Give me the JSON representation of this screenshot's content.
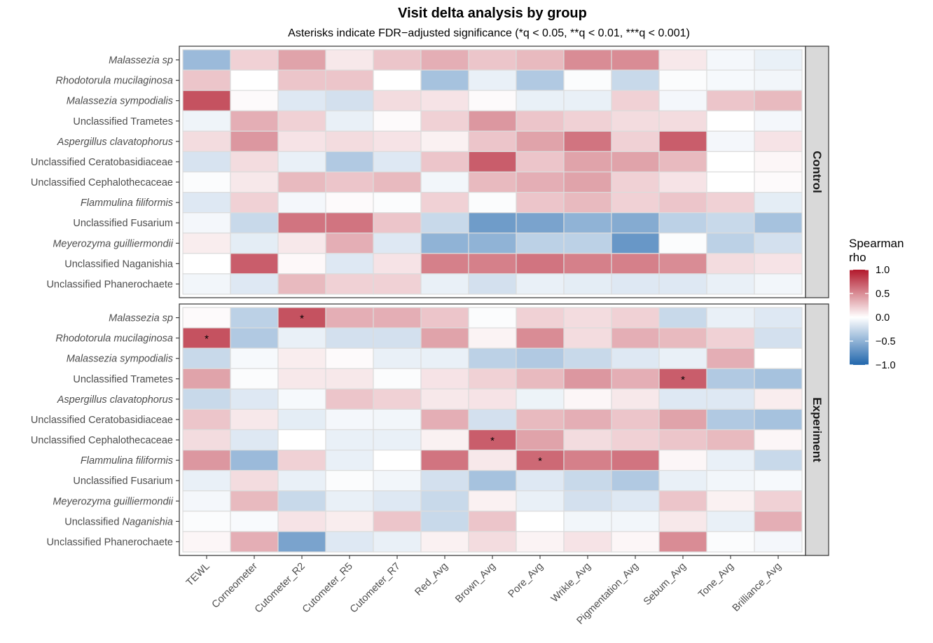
{
  "chart_data": {
    "type": "heatmap",
    "title": "Visit delta analysis by group",
    "subtitle": "Asterisks indicate FDR−adjusted significance (*q < 0.05, **q < 0.01, ***q < 0.001)",
    "x_categories": [
      "TEWL",
      "Corneometer",
      "Cutometer_R2",
      "Cutometer_R5",
      "Cutometer_R7",
      "Red_Avg",
      "Brown_Avg",
      "Pore_Avg",
      "Wrikle_Avg",
      "Pigmentation_Avg",
      "Sebum_Avg",
      "Tone_Avg",
      "Brilliance_Avg"
    ],
    "y_categories": [
      {
        "label": "Malassezia  sp",
        "italic": true
      },
      {
        "label": "Rhodotorula  mucilaginosa",
        "italic": true
      },
      {
        "label": "Malassezia  sympodialis",
        "italic": true
      },
      {
        "label": "Unclassified Trametes",
        "italic": false
      },
      {
        "label": "Aspergillus  clavatophorus",
        "italic": true
      },
      {
        "label": "Unclassified Ceratobasidiaceae",
        "italic": false
      },
      {
        "label": "Unclassified Cephalothecaceae",
        "italic": false
      },
      {
        "label": "Flammulina  filiformis",
        "italic": true
      },
      {
        "label": "Unclassified Fusarium",
        "italic": false
      },
      {
        "label": "Meyerozyma  guilliermondii",
        "italic": true
      },
      {
        "label": "Unclassified Naganishia",
        "italic": false
      },
      {
        "label": "Unclassified Phanerochaete",
        "italic": false
      }
    ],
    "y_categories_experiment": [
      {
        "label": "Malassezia  sp",
        "italic": true
      },
      {
        "label": "Rhodotorula  mucilaginosa",
        "italic": true
      },
      {
        "label": "Malassezia  sympodialis",
        "italic": true
      },
      {
        "label": "Unclassified Trametes",
        "italic": false
      },
      {
        "label": "Aspergillus  clavatophorus",
        "italic": true
      },
      {
        "label": "Unclassified Ceratobasidiaceae",
        "italic": false
      },
      {
        "label": "Unclassified Cephalothecaceae",
        "italic": false
      },
      {
        "label": "Flammulina  filiformis",
        "italic": true
      },
      {
        "label": "Unclassified Fusarium",
        "italic": false
      },
      {
        "label": "Meyerozyma  guilliermondii",
        "italic": true
      },
      {
        "label": "Unclassified ",
        "label_italic": "Naganishia",
        "italic": false
      },
      {
        "label": "Unclassified Phanerochaete",
        "italic": false
      }
    ],
    "legend": {
      "title_lines": [
        "Spearman",
        "rho"
      ],
      "ticks": [
        1.0,
        0.5,
        0.0,
        -0.5,
        -1.0
      ],
      "tick_labels": [
        "1.0",
        "0.5",
        "0.0",
        "−0.5",
        "−1.0"
      ],
      "range": [
        -1,
        1
      ],
      "colors": {
        "low": "#2166ac",
        "mid": "#ffffff",
        "high": "#b2182b"
      },
      "placement": "right"
    },
    "panels": [
      {
        "name": "Control",
        "values": [
          [
            -0.45,
            0.2,
            0.4,
            0.1,
            0.25,
            0.35,
            0.25,
            0.3,
            0.5,
            0.5,
            0.1,
            -0.05,
            -0.1
          ],
          [
            0.25,
            0.0,
            0.25,
            0.25,
            0.0,
            -0.4,
            -0.1,
            -0.35,
            -0.02,
            -0.25,
            -0.02,
            -0.04,
            -0.06
          ],
          [
            0.75,
            0.02,
            -0.15,
            -0.2,
            0.15,
            0.12,
            0.02,
            -0.1,
            -0.1,
            0.2,
            -0.05,
            0.25,
            0.3
          ],
          [
            -0.07,
            0.35,
            0.2,
            -0.1,
            0.02,
            0.2,
            0.45,
            0.25,
            0.2,
            0.15,
            0.15,
            0.0,
            -0.05
          ],
          [
            0.15,
            0.45,
            0.12,
            0.15,
            0.12,
            0.06,
            0.25,
            0.4,
            0.6,
            0.2,
            0.7,
            -0.05,
            0.12
          ],
          [
            -0.18,
            0.15,
            -0.1,
            -0.35,
            -0.15,
            0.25,
            0.7,
            0.25,
            0.4,
            0.4,
            0.3,
            0.0,
            0.04
          ],
          [
            -0.02,
            0.1,
            0.3,
            0.25,
            0.3,
            -0.06,
            0.3,
            0.35,
            0.4,
            0.2,
            0.12,
            0.0,
            0.02
          ],
          [
            -0.15,
            0.2,
            -0.05,
            0.02,
            -0.02,
            0.2,
            -0.02,
            0.25,
            0.3,
            0.2,
            0.25,
            0.2,
            -0.12
          ],
          [
            -0.05,
            -0.25,
            0.6,
            0.6,
            0.25,
            -0.25,
            -0.65,
            -0.6,
            -0.5,
            -0.55,
            -0.3,
            -0.25,
            -0.4
          ],
          [
            0.08,
            -0.12,
            0.1,
            0.35,
            -0.15,
            -0.5,
            -0.5,
            -0.3,
            -0.3,
            -0.68,
            -0.02,
            -0.3,
            -0.2
          ],
          [
            0.0,
            0.7,
            0.03,
            -0.15,
            0.12,
            0.55,
            0.55,
            0.6,
            0.55,
            0.55,
            0.5,
            0.15,
            0.12
          ],
          [
            -0.06,
            -0.15,
            0.3,
            0.2,
            0.2,
            -0.1,
            -0.2,
            -0.1,
            -0.12,
            -0.15,
            -0.15,
            -0.1,
            -0.06
          ]
        ],
        "stars": []
      },
      {
        "name": "Experiment",
        "values": [
          [
            0.02,
            -0.3,
            0.75,
            0.35,
            0.35,
            0.25,
            -0.02,
            0.2,
            0.15,
            0.2,
            -0.25,
            -0.1,
            -0.15
          ],
          [
            0.75,
            -0.35,
            -0.1,
            -0.2,
            -0.2,
            0.4,
            0.05,
            0.5,
            0.15,
            0.35,
            0.3,
            0.2,
            -0.2
          ],
          [
            -0.25,
            -0.04,
            0.08,
            0.02,
            -0.1,
            -0.1,
            -0.3,
            -0.35,
            -0.25,
            -0.15,
            -0.1,
            0.35,
            0.0
          ],
          [
            0.4,
            -0.02,
            0.1,
            0.1,
            -0.02,
            0.12,
            0.2,
            0.3,
            0.45,
            0.35,
            0.7,
            -0.35,
            -0.4
          ],
          [
            -0.25,
            -0.15,
            -0.04,
            0.25,
            0.2,
            0.1,
            0.12,
            -0.08,
            0.04,
            0.1,
            -0.15,
            -0.15,
            0.08
          ],
          [
            0.25,
            0.1,
            -0.12,
            -0.05,
            -0.06,
            0.35,
            -0.2,
            0.3,
            0.35,
            0.25,
            0.4,
            -0.35,
            -0.4
          ],
          [
            0.15,
            -0.15,
            0.0,
            -0.1,
            -0.1,
            0.06,
            0.7,
            0.4,
            0.15,
            0.2,
            0.25,
            0.3,
            0.04
          ],
          [
            0.45,
            -0.45,
            0.2,
            -0.1,
            0.0,
            0.6,
            0.1,
            0.65,
            0.55,
            0.6,
            0.04,
            -0.1,
            -0.25
          ],
          [
            -0.1,
            0.15,
            -0.1,
            -0.02,
            -0.06,
            -0.2,
            -0.4,
            -0.15,
            -0.25,
            -0.35,
            -0.1,
            -0.06,
            -0.04
          ],
          [
            -0.05,
            0.3,
            -0.25,
            -0.1,
            -0.15,
            -0.25,
            0.06,
            -0.1,
            -0.2,
            -0.15,
            0.25,
            0.06,
            0.2
          ],
          [
            -0.02,
            -0.03,
            0.12,
            0.08,
            0.25,
            -0.25,
            0.25,
            0.0,
            -0.06,
            -0.06,
            0.1,
            -0.1,
            0.35
          ],
          [
            0.04,
            0.35,
            -0.6,
            -0.15,
            -0.1,
            0.06,
            0.15,
            0.05,
            0.12,
            0.04,
            0.5,
            -0.02,
            -0.05
          ]
        ],
        "stars": [
          {
            "row": 0,
            "col": 2,
            "label": "*"
          },
          {
            "row": 1,
            "col": 0,
            "label": "*"
          },
          {
            "row": 3,
            "col": 10,
            "label": "*"
          },
          {
            "row": 6,
            "col": 6,
            "label": "*"
          },
          {
            "row": 7,
            "col": 7,
            "label": "*"
          }
        ]
      }
    ]
  }
}
